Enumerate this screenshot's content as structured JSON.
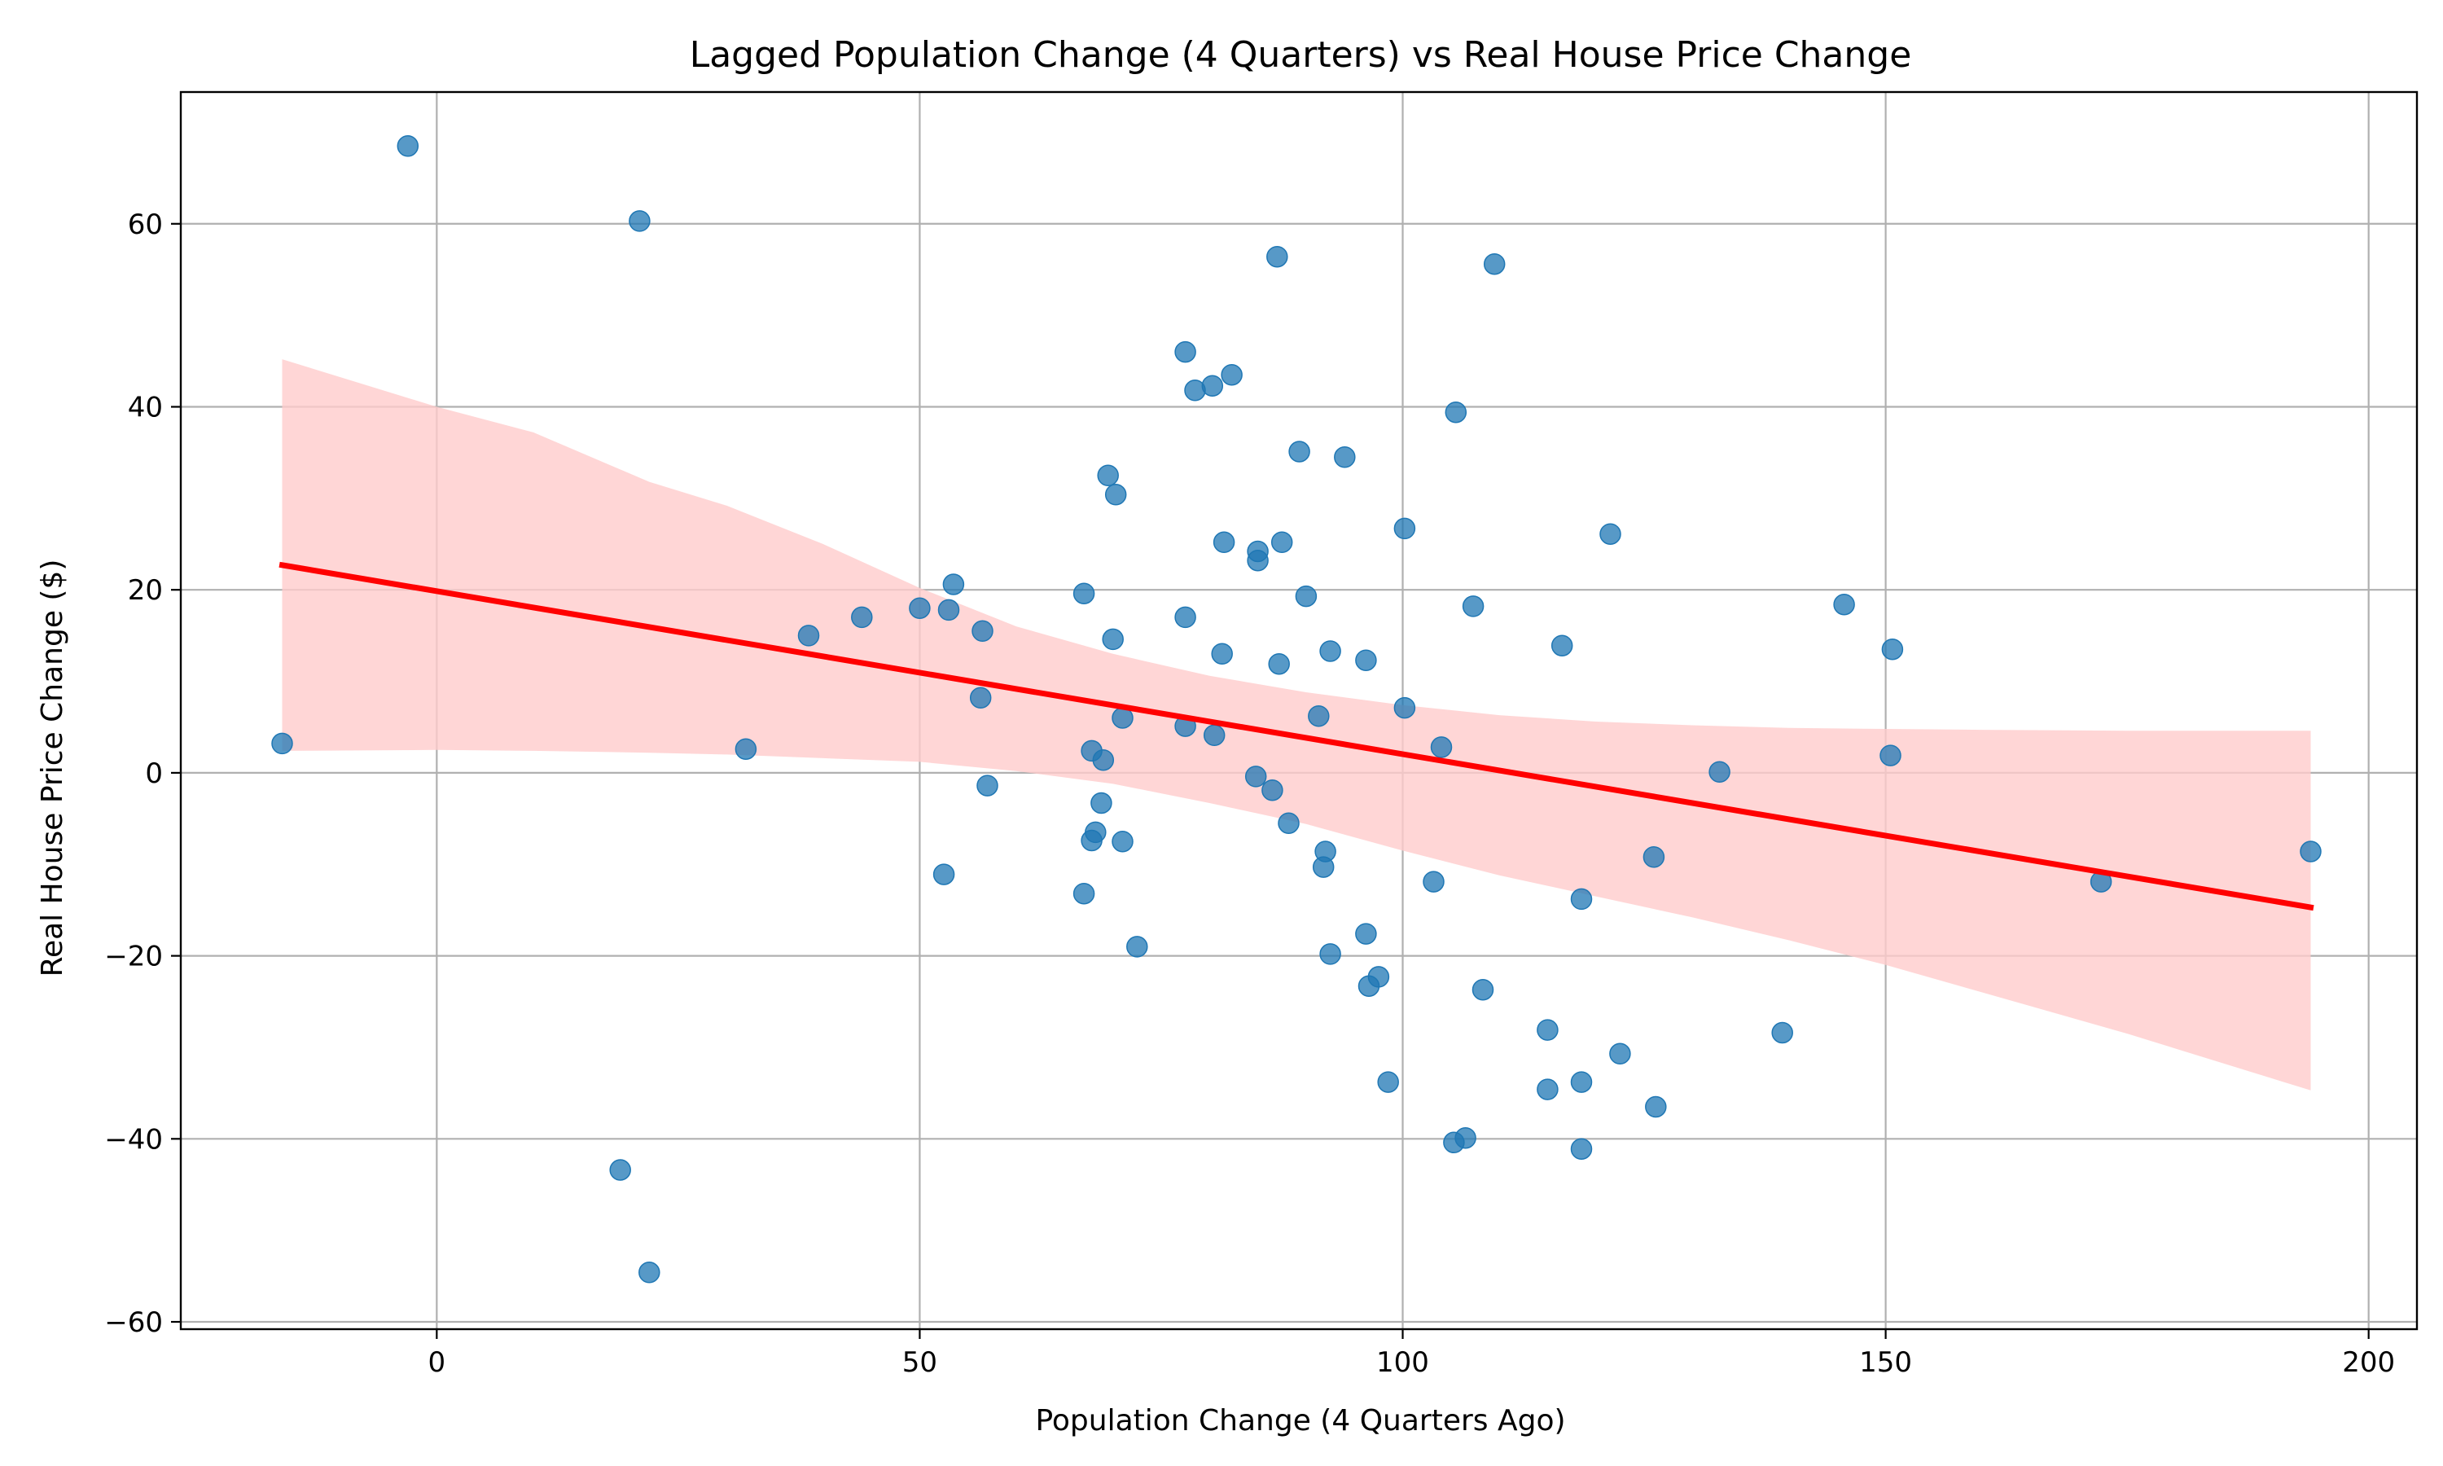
{
  "chart_data": {
    "type": "scatter",
    "title": "Lagged Population Change (4 Quarters) vs Real House Price Change",
    "xlabel": "Population Change (4 Quarters Ago)",
    "ylabel": "Real House Price Change ($)",
    "xlim": [
      -26.5,
      205
    ],
    "ylim": [
      -60.8,
      74.4
    ],
    "xticks": [
      0,
      50,
      100,
      150,
      200
    ],
    "yticks": [
      -60,
      -40,
      -20,
      0,
      20,
      40,
      60
    ],
    "xtick_labels": [
      "0",
      "50",
      "100",
      "150",
      "200"
    ],
    "ytick_labels": [
      "−60",
      "−40",
      "−20",
      "0",
      "20",
      "40",
      "60"
    ],
    "grid": true,
    "colors": {
      "points": "#1f77b4",
      "regression_line": "#ff0000",
      "confidence_band": "#ffcccc",
      "grid": "#b0b0b0"
    },
    "regression": {
      "x": [
        -16,
        194
      ],
      "y": [
        22.7,
        -14.7
      ]
    },
    "confidence_band": [
      {
        "x": -16,
        "lower": 2.4,
        "upper": 45.2
      },
      {
        "x": 0,
        "lower": 2.5,
        "upper": 40.0
      },
      {
        "x": 10,
        "lower": 2.4,
        "upper": 37.2
      },
      {
        "x": 22,
        "lower": 2.2,
        "upper": 31.8
      },
      {
        "x": 30,
        "lower": 2.0,
        "upper": 29.2
      },
      {
        "x": 40,
        "lower": 1.6,
        "upper": 25.0
      },
      {
        "x": 50,
        "lower": 1.2,
        "upper": 20.2
      },
      {
        "x": 60,
        "lower": 0.2,
        "upper": 16.0
      },
      {
        "x": 70,
        "lower": -1.2,
        "upper": 13.0
      },
      {
        "x": 80,
        "lower": -3.3,
        "upper": 10.6
      },
      {
        "x": 90,
        "lower": -5.6,
        "upper": 8.8
      },
      {
        "x": 100,
        "lower": -8.5,
        "upper": 7.4
      },
      {
        "x": 110,
        "lower": -11.2,
        "upper": 6.3
      },
      {
        "x": 120,
        "lower": -13.5,
        "upper": 5.6
      },
      {
        "x": 130,
        "lower": -15.8,
        "upper": 5.2
      },
      {
        "x": 140,
        "lower": -18.3,
        "upper": 4.9
      },
      {
        "x": 150,
        "lower": -21.0,
        "upper": 4.8
      },
      {
        "x": 160,
        "lower": -24.0,
        "upper": 4.7
      },
      {
        "x": 175,
        "lower": -28.5,
        "upper": 4.6
      },
      {
        "x": 194,
        "lower": -34.7,
        "upper": 4.6
      }
    ],
    "points": [
      {
        "x": -3,
        "y": 68.5
      },
      {
        "x": 21,
        "y": 60.3
      },
      {
        "x": -16,
        "y": 3.2
      },
      {
        "x": 19,
        "y": -43.4
      },
      {
        "x": 22,
        "y": -54.6
      },
      {
        "x": 32,
        "y": 2.6
      },
      {
        "x": 38.5,
        "y": 15.0
      },
      {
        "x": 44,
        "y": 17.0
      },
      {
        "x": 50,
        "y": 18.0
      },
      {
        "x": 53,
        "y": 17.8
      },
      {
        "x": 53.5,
        "y": 20.6
      },
      {
        "x": 56.5,
        "y": 15.5
      },
      {
        "x": 56.3,
        "y": 8.2
      },
      {
        "x": 57,
        "y": -1.4
      },
      {
        "x": 52.5,
        "y": -11.1
      },
      {
        "x": 67,
        "y": 19.6
      },
      {
        "x": 69.5,
        "y": 32.5
      },
      {
        "x": 70.3,
        "y": 30.4
      },
      {
        "x": 70,
        "y": 14.6
      },
      {
        "x": 67.8,
        "y": 2.4
      },
      {
        "x": 69,
        "y": 1.4
      },
      {
        "x": 71,
        "y": 6.0
      },
      {
        "x": 68.8,
        "y": -3.3
      },
      {
        "x": 68.2,
        "y": -6.5
      },
      {
        "x": 67.8,
        "y": -7.4
      },
      {
        "x": 71,
        "y": -7.5
      },
      {
        "x": 67,
        "y": -13.2
      },
      {
        "x": 72.5,
        "y": -19.0
      },
      {
        "x": 77.5,
        "y": 46.0
      },
      {
        "x": 78.5,
        "y": 41.8
      },
      {
        "x": 80.3,
        "y": 42.3
      },
      {
        "x": 82.3,
        "y": 43.5
      },
      {
        "x": 81.5,
        "y": 25.2
      },
      {
        "x": 77.5,
        "y": 17.0
      },
      {
        "x": 81.3,
        "y": 13.0
      },
      {
        "x": 77.5,
        "y": 5.1
      },
      {
        "x": 80.5,
        "y": 4.1
      },
      {
        "x": 85,
        "y": 24.2
      },
      {
        "x": 85,
        "y": 23.2
      },
      {
        "x": 87.5,
        "y": 25.2
      },
      {
        "x": 87,
        "y": 56.4
      },
      {
        "x": 89.3,
        "y": 35.1
      },
      {
        "x": 90,
        "y": 19.3
      },
      {
        "x": 87.2,
        "y": 11.9
      },
      {
        "x": 91.3,
        "y": 6.2
      },
      {
        "x": 92.5,
        "y": 13.3
      },
      {
        "x": 84.8,
        "y": -0.4
      },
      {
        "x": 86.5,
        "y": -1.9
      },
      {
        "x": 88.2,
        "y": -5.5
      },
      {
        "x": 92,
        "y": -8.6
      },
      {
        "x": 91.8,
        "y": -10.3
      },
      {
        "x": 92.5,
        "y": -19.8
      },
      {
        "x": 94,
        "y": 34.5
      },
      {
        "x": 96.2,
        "y": 12.3
      },
      {
        "x": 96.2,
        "y": -17.6
      },
      {
        "x": 97.5,
        "y": -22.3
      },
      {
        "x": 96.5,
        "y": -23.3
      },
      {
        "x": 98.5,
        "y": -33.8
      },
      {
        "x": 100.2,
        "y": 26.7
      },
      {
        "x": 100.2,
        "y": 7.1
      },
      {
        "x": 104,
        "y": 2.8
      },
      {
        "x": 103.2,
        "y": -11.9
      },
      {
        "x": 105.5,
        "y": 39.4
      },
      {
        "x": 109.5,
        "y": 55.6
      },
      {
        "x": 107.3,
        "y": 18.2
      },
      {
        "x": 108.3,
        "y": -23.7
      },
      {
        "x": 105.3,
        "y": -40.4
      },
      {
        "x": 106.5,
        "y": -39.9
      },
      {
        "x": 116.5,
        "y": 13.9
      },
      {
        "x": 118.5,
        "y": -13.8
      },
      {
        "x": 115,
        "y": -28.1
      },
      {
        "x": 115,
        "y": -34.6
      },
      {
        "x": 118.5,
        "y": -33.8
      },
      {
        "x": 118.5,
        "y": -41.1
      },
      {
        "x": 121.5,
        "y": 26.1
      },
      {
        "x": 122.5,
        "y": -30.7
      },
      {
        "x": 126,
        "y": -9.2
      },
      {
        "x": 126.2,
        "y": -36.5
      },
      {
        "x": 132.8,
        "y": 0.1
      },
      {
        "x": 139.3,
        "y": -28.4
      },
      {
        "x": 145.7,
        "y": 18.4
      },
      {
        "x": 150.7,
        "y": 13.5
      },
      {
        "x": 150.5,
        "y": 1.9
      },
      {
        "x": 172.3,
        "y": -11.9
      },
      {
        "x": 194,
        "y": -8.6
      }
    ]
  }
}
